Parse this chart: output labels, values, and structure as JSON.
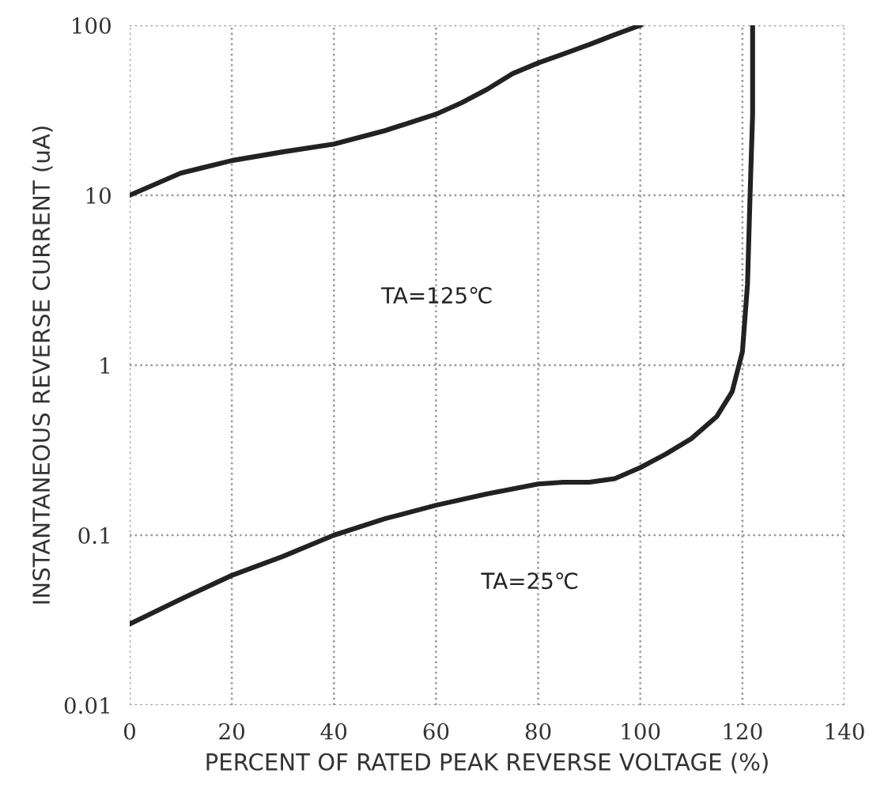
{
  "chart_data": {
    "type": "line",
    "xlabel": "PERCENT OF RATED PEAK REVERSE VOLTAGE (%)",
    "ylabel": "INSTANTANEOUS REVERSE CURRENT (uA)",
    "log": "y",
    "xlim": [
      0,
      140
    ],
    "ylim": [
      0.01,
      100
    ],
    "xticks": [
      0,
      20,
      40,
      60,
      80,
      100,
      120,
      140
    ],
    "yticks": [
      0.01,
      0.1,
      1,
      10,
      100
    ],
    "grid": true,
    "line_style": "solid",
    "marker": "none",
    "series": [
      {
        "color": "#222222",
        "x": [
          0,
          10,
          20,
          30,
          40,
          50,
          60,
          65,
          70,
          75,
          80,
          85,
          90,
          95,
          100
        ],
        "values": [
          10,
          13.5,
          16,
          18,
          20,
          24,
          30,
          35,
          42,
          52,
          60,
          68,
          77,
          88,
          100
        ]
      },
      {
        "color": "#222222",
        "x": [
          0,
          10,
          20,
          30,
          40,
          50,
          60,
          70,
          80,
          85,
          90,
          95,
          100,
          105,
          110,
          115,
          118,
          120,
          121,
          121.5,
          122,
          122
        ],
        "values": [
          0.03,
          0.042,
          0.058,
          0.075,
          0.1,
          0.125,
          0.15,
          0.175,
          0.2,
          0.205,
          0.205,
          0.215,
          0.25,
          0.3,
          0.37,
          0.5,
          0.7,
          1.2,
          3,
          10,
          30,
          100
        ]
      }
    ],
    "annotations": [
      "TA=125℃",
      "TA=25℃"
    ]
  }
}
